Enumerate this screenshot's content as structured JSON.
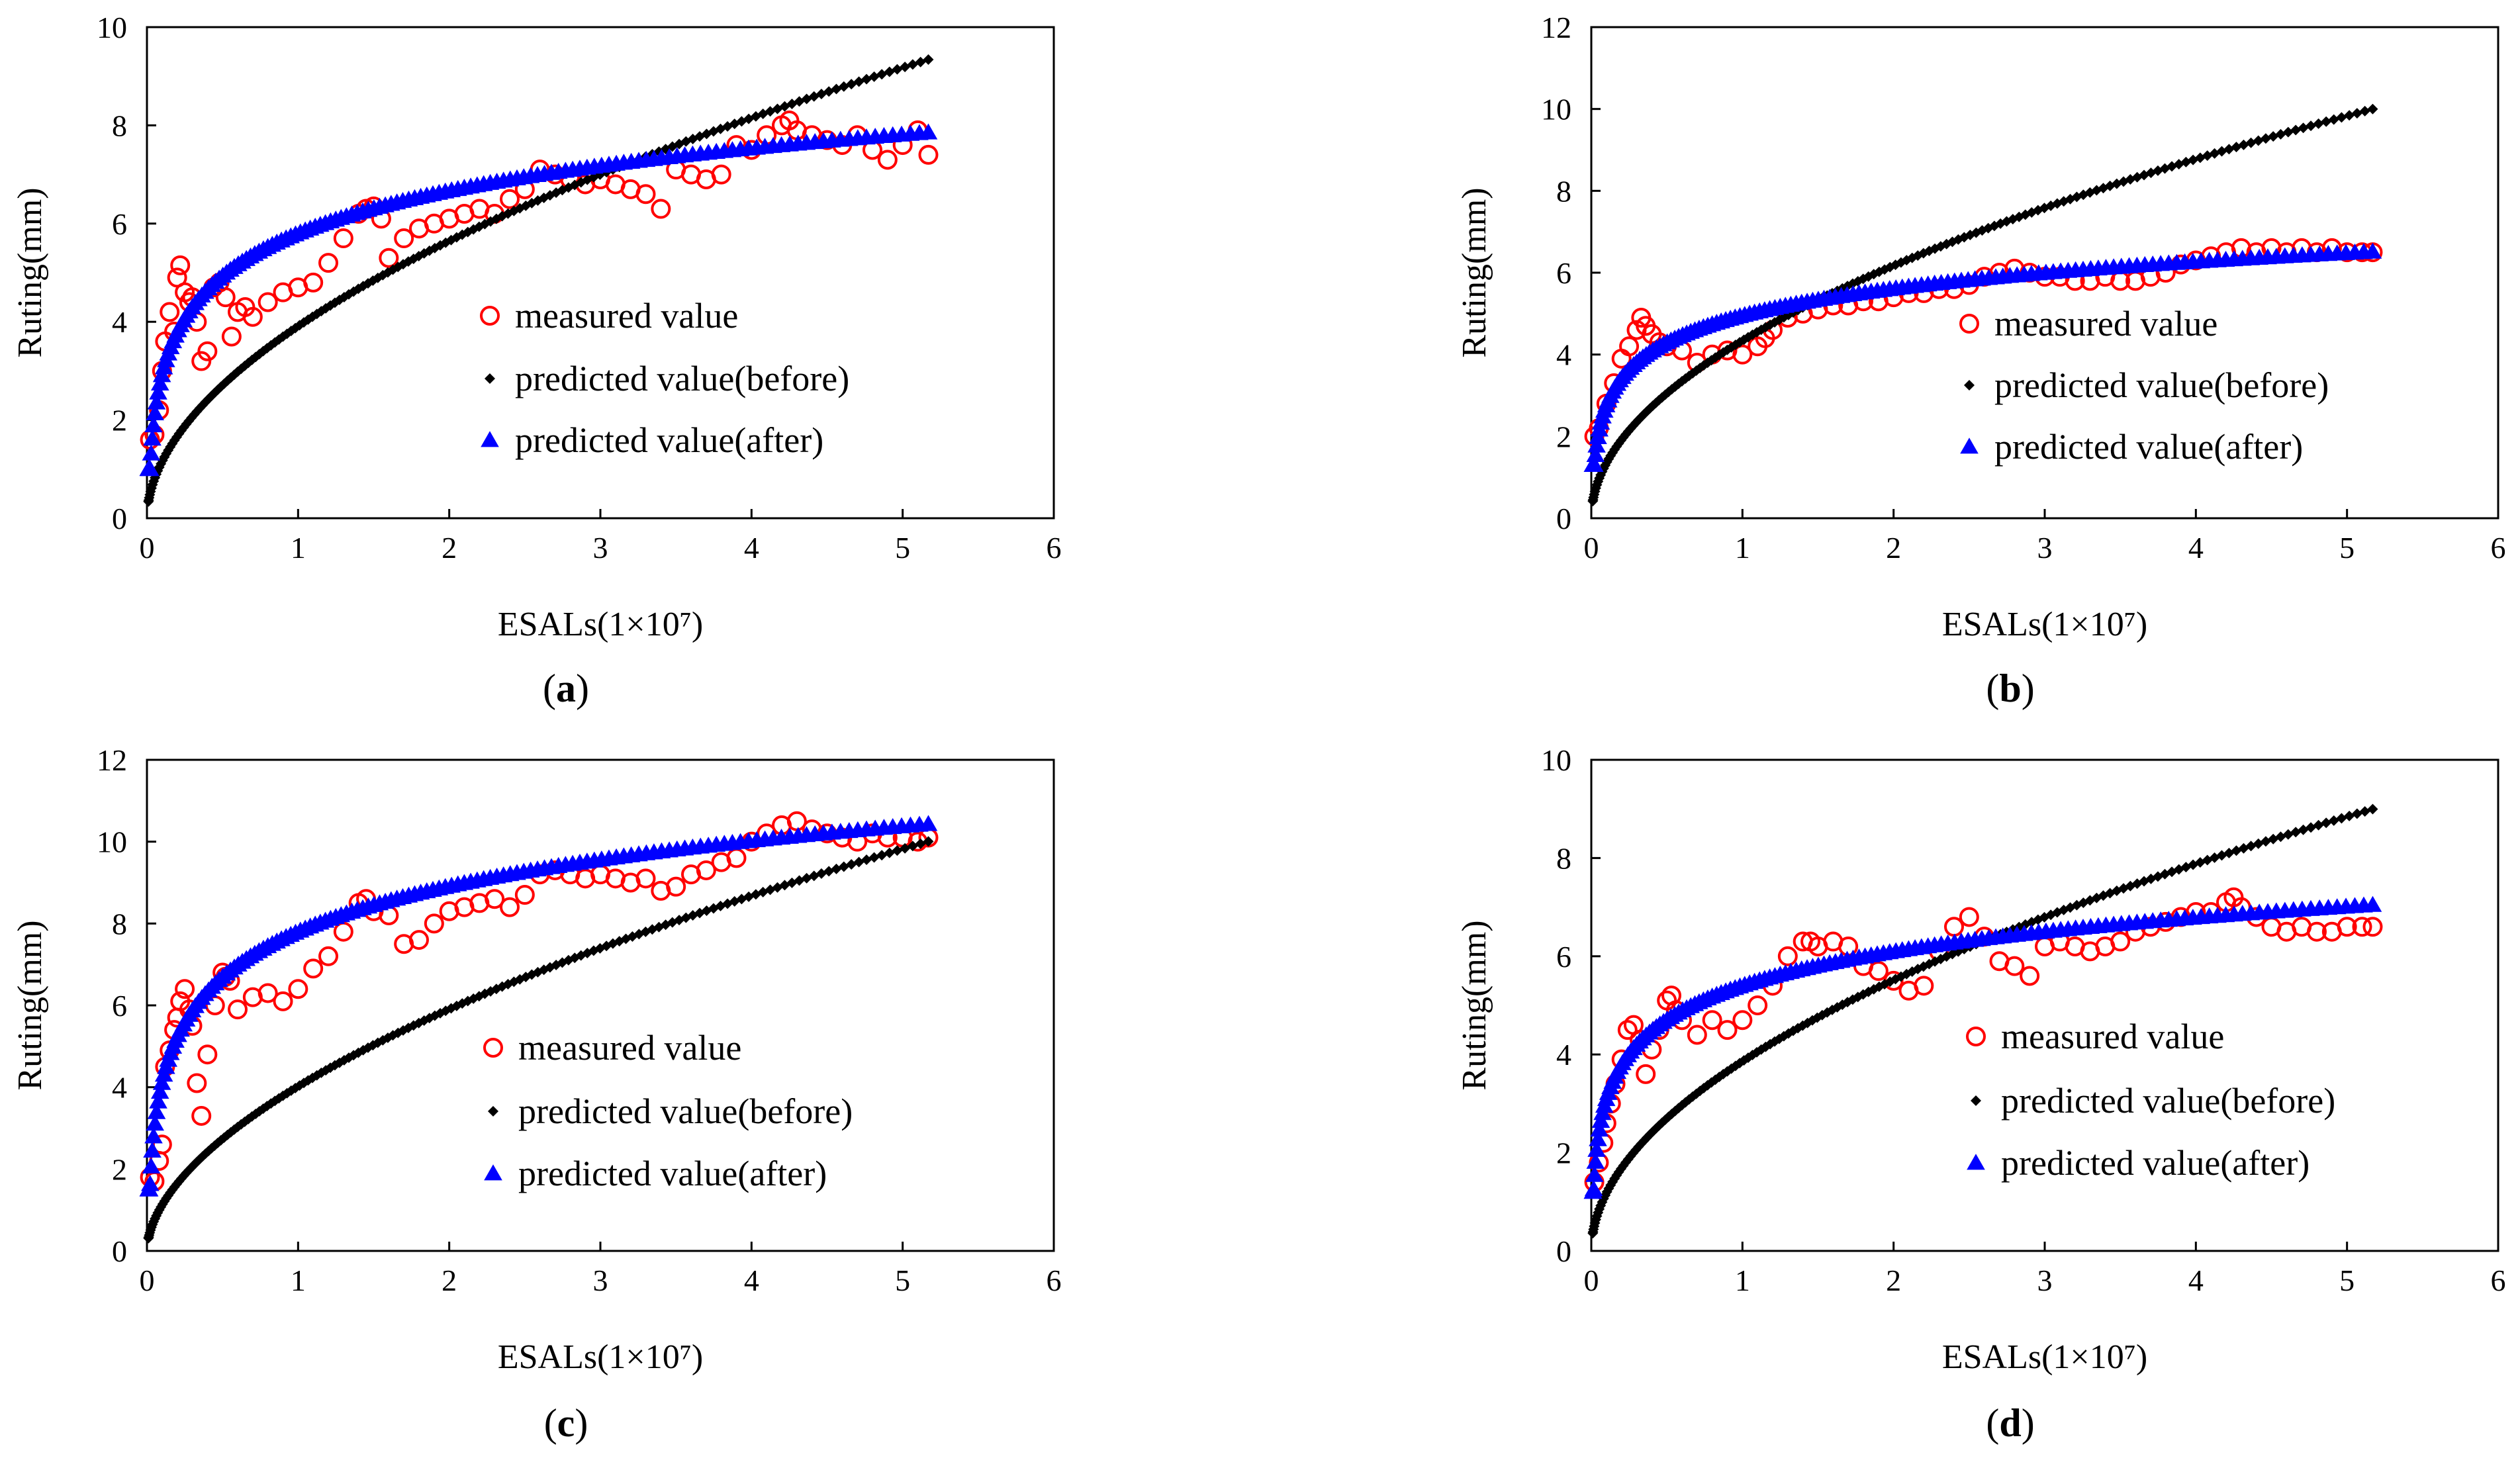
{
  "chart_data": [
    {
      "type": "scatter",
      "caption": "(a)",
      "caption_letter": "a",
      "xlabel": "ESALs(1×10⁷)",
      "ylabel": "Ruting(mm)",
      "xlim": [
        0,
        6
      ],
      "ylim": [
        0,
        10
      ],
      "xticks": [
        0,
        1,
        2,
        3,
        4,
        5,
        6
      ],
      "yticks": [
        0,
        2,
        4,
        6,
        8,
        10
      ],
      "legend_placement": "center-right",
      "series": [
        {
          "name": "measured value",
          "marker": "open-circle",
          "color": "#ff0000",
          "x": [
            0.02,
            0.05,
            0.08,
            0.1,
            0.12,
            0.15,
            0.18,
            0.2,
            0.22,
            0.25,
            0.28,
            0.3,
            0.33,
            0.36,
            0.4,
            0.44,
            0.48,
            0.52,
            0.56,
            0.6,
            0.65,
            0.7,
            0.8,
            0.9,
            1.0,
            1.1,
            1.2,
            1.3,
            1.4,
            1.45,
            1.5,
            1.55,
            1.6,
            1.7,
            1.8,
            1.9,
            2.0,
            2.1,
            2.2,
            2.3,
            2.4,
            2.5,
            2.6,
            2.7,
            2.8,
            2.9,
            3.0,
            3.1,
            3.2,
            3.3,
            3.4,
            3.5,
            3.6,
            3.7,
            3.8,
            3.9,
            4.0,
            4.1,
            4.2,
            4.25,
            4.3,
            4.4,
            4.5,
            4.6,
            4.7,
            4.8,
            4.9,
            5.0,
            5.1,
            5.17
          ],
          "y": [
            1.6,
            1.7,
            2.2,
            3.0,
            3.6,
            4.2,
            3.8,
            4.9,
            5.15,
            4.6,
            4.4,
            4.5,
            4.0,
            3.2,
            3.4,
            4.7,
            4.8,
            4.5,
            3.7,
            4.2,
            4.3,
            4.1,
            4.4,
            4.6,
            4.7,
            4.8,
            5.2,
            5.7,
            6.2,
            6.3,
            6.35,
            6.1,
            5.3,
            5.7,
            5.9,
            6.0,
            6.1,
            6.2,
            6.3,
            6.2,
            6.5,
            6.7,
            7.1,
            7.0,
            6.9,
            6.8,
            6.9,
            6.8,
            6.7,
            6.6,
            6.3,
            7.1,
            7.0,
            6.9,
            7.0,
            7.6,
            7.5,
            7.8,
            8.0,
            8.1,
            7.9,
            7.8,
            7.7,
            7.6,
            7.8,
            7.5,
            7.3,
            7.6,
            7.9,
            7.4
          ]
        },
        {
          "name": "predicted value(before)",
          "marker": "diamond",
          "color": "#000000",
          "model": {
            "form": "a*x^b",
            "a": 3.91,
            "b": 0.53
          },
          "x_range": [
            0.01,
            5.17
          ],
          "points": 160
        },
        {
          "name": "predicted value(after)",
          "marker": "triangle",
          "color": "#0000ff",
          "model": {
            "form": "a*ln(x)+b",
            "a": 1.25,
            "b": 5.8
          },
          "x_range": [
            0.01,
            5.17
          ],
          "points": 140,
          "floor": 1.0
        }
      ]
    },
    {
      "type": "scatter",
      "caption": "(b)",
      "caption_letter": "b",
      "xlabel": "ESALs(1×10⁷)",
      "ylabel": "Ruting(mm)",
      "xlim": [
        0,
        6
      ],
      "ylim": [
        0,
        12
      ],
      "xticks": [
        0,
        1,
        2,
        3,
        4,
        5,
        6
      ],
      "yticks": [
        0,
        2,
        4,
        6,
        8,
        10,
        12
      ],
      "legend_placement": "center-right",
      "series": [
        {
          "name": "measured value",
          "marker": "open-circle",
          "color": "#ff0000",
          "x": [
            0.02,
            0.05,
            0.1,
            0.15,
            0.2,
            0.25,
            0.3,
            0.33,
            0.36,
            0.4,
            0.45,
            0.5,
            0.6,
            0.7,
            0.8,
            0.9,
            1.0,
            1.1,
            1.15,
            1.2,
            1.3,
            1.4,
            1.5,
            1.6,
            1.7,
            1.8,
            1.9,
            2.0,
            2.1,
            2.2,
            2.3,
            2.4,
            2.5,
            2.6,
            2.7,
            2.8,
            2.9,
            3.0,
            3.1,
            3.2,
            3.3,
            3.4,
            3.5,
            3.6,
            3.7,
            3.8,
            3.9,
            4.0,
            4.1,
            4.2,
            4.3,
            4.4,
            4.5,
            4.6,
            4.7,
            4.8,
            4.9,
            5.0,
            5.1,
            5.17
          ],
          "y": [
            2.0,
            2.2,
            2.8,
            3.3,
            3.9,
            4.2,
            4.6,
            4.9,
            4.7,
            4.5,
            4.3,
            4.2,
            4.1,
            3.8,
            4.0,
            4.1,
            4.0,
            4.2,
            4.4,
            4.6,
            4.9,
            5.0,
            5.1,
            5.2,
            5.2,
            5.3,
            5.3,
            5.4,
            5.5,
            5.5,
            5.6,
            5.6,
            5.7,
            5.9,
            6.0,
            6.1,
            6.0,
            5.9,
            5.9,
            5.8,
            5.8,
            5.9,
            5.8,
            5.8,
            5.9,
            6.0,
            6.2,
            6.3,
            6.4,
            6.5,
            6.6,
            6.5,
            6.6,
            6.5,
            6.6,
            6.5,
            6.6,
            6.5,
            6.5,
            6.5
          ]
        },
        {
          "name": "predicted value(before)",
          "marker": "diamond",
          "color": "#000000",
          "model": {
            "form": "a*x^b",
            "a": 4.34,
            "b": 0.508
          },
          "x_range": [
            0.01,
            5.17
          ],
          "points": 160
        },
        {
          "name": "predicted value(after)",
          "marker": "triangle",
          "color": "#0000ff",
          "model": {
            "form": "a*ln(x)+b",
            "a": 0.95,
            "b": 4.95
          },
          "x_range": [
            0.01,
            5.17
          ],
          "points": 140,
          "floor": 1.3
        }
      ]
    },
    {
      "type": "scatter",
      "caption": "(c)",
      "caption_letter": "c",
      "xlabel": "ESALs(1×10⁷)",
      "ylabel": "Ruting(mm)",
      "xlim": [
        0,
        6
      ],
      "ylim": [
        0,
        12
      ],
      "xticks": [
        0,
        1,
        2,
        3,
        4,
        5,
        6
      ],
      "yticks": [
        0,
        2,
        4,
        6,
        8,
        10,
        12
      ],
      "legend_placement": "bottom-right",
      "series": [
        {
          "name": "measured value",
          "marker": "open-circle",
          "color": "#ff0000",
          "x": [
            0.02,
            0.05,
            0.08,
            0.1,
            0.12,
            0.15,
            0.18,
            0.2,
            0.22,
            0.25,
            0.28,
            0.3,
            0.33,
            0.36,
            0.4,
            0.45,
            0.5,
            0.52,
            0.55,
            0.6,
            0.7,
            0.8,
            0.9,
            1.0,
            1.1,
            1.2,
            1.3,
            1.4,
            1.45,
            1.5,
            1.6,
            1.7,
            1.8,
            1.9,
            2.0,
            2.1,
            2.2,
            2.3,
            2.4,
            2.5,
            2.6,
            2.7,
            2.8,
            2.9,
            3.0,
            3.1,
            3.2,
            3.3,
            3.4,
            3.5,
            3.6,
            3.7,
            3.8,
            3.9,
            4.0,
            4.1,
            4.2,
            4.3,
            4.4,
            4.5,
            4.6,
            4.7,
            4.8,
            4.9,
            5.0,
            5.1,
            5.17
          ],
          "y": [
            1.8,
            1.7,
            2.2,
            2.6,
            4.5,
            4.9,
            5.4,
            5.7,
            6.1,
            6.4,
            5.9,
            5.5,
            4.1,
            3.3,
            4.8,
            6.0,
            6.8,
            6.7,
            6.6,
            5.9,
            6.2,
            6.3,
            6.1,
            6.4,
            6.9,
            7.2,
            7.8,
            8.5,
            8.6,
            8.3,
            8.2,
            7.5,
            7.6,
            8.0,
            8.3,
            8.4,
            8.5,
            8.6,
            8.4,
            8.7,
            9.2,
            9.3,
            9.2,
            9.1,
            9.2,
            9.1,
            9.0,
            9.1,
            8.8,
            8.9,
            9.2,
            9.3,
            9.5,
            9.6,
            10.0,
            10.2,
            10.4,
            10.5,
            10.3,
            10.2,
            10.1,
            10.0,
            10.2,
            10.1,
            10.1,
            10.0,
            10.1
          ]
        },
        {
          "name": "predicted value(before)",
          "marker": "diamond",
          "color": "#000000",
          "model": {
            "form": "a*x^b",
            "a": 4.02,
            "b": 0.555
          },
          "x_range": [
            0.01,
            5.17
          ],
          "points": 160
        },
        {
          "name": "predicted value(after)",
          "marker": "triangle",
          "color": "#0000ff",
          "model": {
            "form": "a*ln(x)+b",
            "a": 1.6,
            "b": 7.8
          },
          "x_range": [
            0.01,
            5.17
          ],
          "points": 140,
          "floor": 1.5
        }
      ]
    },
    {
      "type": "scatter",
      "caption": "(d)",
      "caption_letter": "d",
      "xlabel": "ESALs(1×10⁷)",
      "ylabel": "Ruting(mm)",
      "xlim": [
        0,
        6
      ],
      "ylim": [
        0,
        10
      ],
      "xticks": [
        0,
        1,
        2,
        3,
        4,
        5,
        6
      ],
      "yticks": [
        0,
        2,
        4,
        6,
        8,
        10
      ],
      "legend_placement": "bottom-right",
      "series": [
        {
          "name": "measured value",
          "marker": "open-circle",
          "color": "#ff0000",
          "x": [
            0.02,
            0.05,
            0.08,
            0.1,
            0.13,
            0.16,
            0.2,
            0.24,
            0.28,
            0.32,
            0.36,
            0.4,
            0.45,
            0.5,
            0.53,
            0.56,
            0.6,
            0.7,
            0.8,
            0.9,
            1.0,
            1.1,
            1.2,
            1.3,
            1.4,
            1.45,
            1.5,
            1.6,
            1.7,
            1.8,
            1.9,
            2.0,
            2.1,
            2.2,
            2.3,
            2.4,
            2.5,
            2.6,
            2.7,
            2.8,
            2.9,
            3.0,
            3.1,
            3.2,
            3.3,
            3.4,
            3.5,
            3.6,
            3.7,
            3.8,
            3.9,
            4.0,
            4.1,
            4.2,
            4.25,
            4.3,
            4.4,
            4.5,
            4.6,
            4.7,
            4.8,
            4.9,
            5.0,
            5.1,
            5.17
          ],
          "y": [
            1.4,
            1.8,
            2.2,
            2.6,
            3.0,
            3.4,
            3.9,
            4.5,
            4.6,
            4.3,
            3.6,
            4.1,
            4.5,
            5.1,
            5.2,
            4.9,
            4.7,
            4.4,
            4.7,
            4.5,
            4.7,
            5.0,
            5.4,
            6.0,
            6.3,
            6.3,
            6.2,
            6.3,
            6.2,
            5.8,
            5.7,
            5.5,
            5.3,
            5.4,
            6.1,
            6.6,
            6.8,
            6.4,
            5.9,
            5.8,
            5.6,
            6.2,
            6.3,
            6.2,
            6.1,
            6.2,
            6.3,
            6.5,
            6.6,
            6.7,
            6.8,
            6.9,
            6.9,
            7.1,
            7.2,
            7.0,
            6.8,
            6.6,
            6.5,
            6.6,
            6.5,
            6.5,
            6.6,
            6.6,
            6.6
          ]
        },
        {
          "name": "predicted value(before)",
          "marker": "diamond",
          "color": "#000000",
          "model": {
            "form": "a*x^b",
            "a": 3.86,
            "b": 0.515
          },
          "x_range": [
            0.01,
            5.17
          ],
          "points": 160
        },
        {
          "name": "predicted value(after)",
          "marker": "triangle",
          "color": "#0000ff",
          "model": {
            "form": "a*ln(x)+b",
            "a": 1.0,
            "b": 5.4
          },
          "x_range": [
            0.01,
            5.17
          ],
          "points": 140,
          "floor": 1.2
        }
      ]
    }
  ]
}
